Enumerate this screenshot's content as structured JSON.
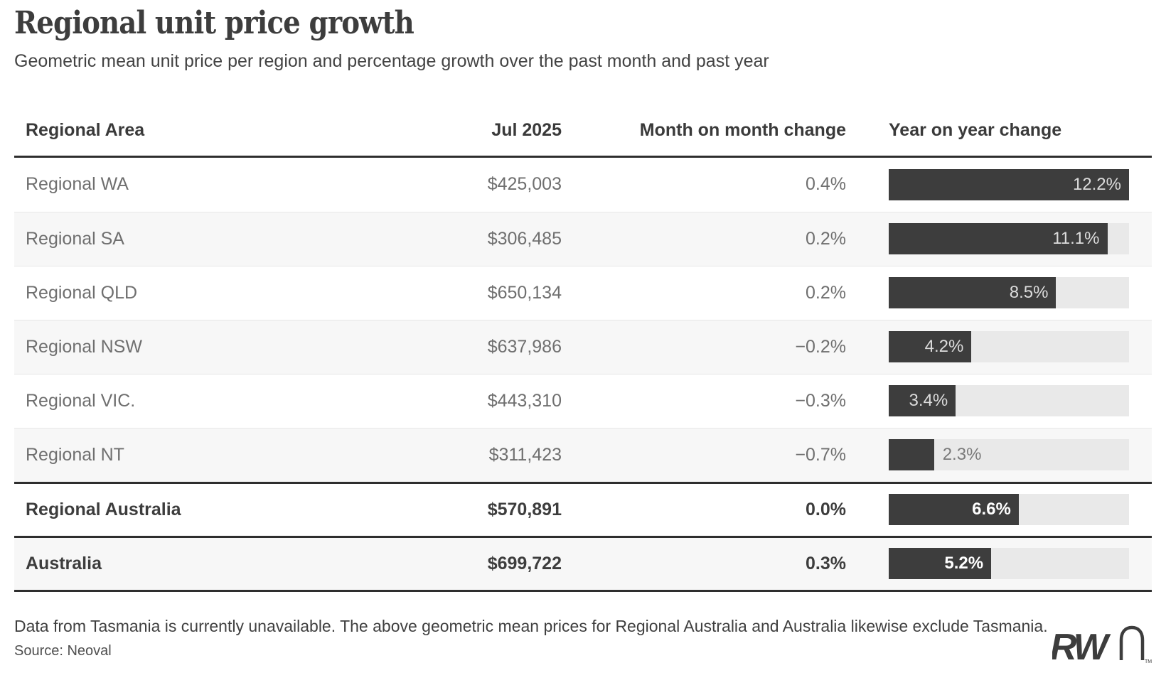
{
  "header": {
    "title": "Regional unit price growth",
    "subtitle": "Geometric mean unit price per region and percentage growth over the past month and past year"
  },
  "table": {
    "columns": {
      "area": "Regional Area",
      "price": "Jul 2025",
      "mom": "Month on month change",
      "yoy": "Year on year change"
    },
    "bar_axis_max": 12.2,
    "rows": [
      {
        "area": "Regional WA",
        "price": "$425,003",
        "mom": "0.4%",
        "yoy": 12.2,
        "yoy_label": "12.2%",
        "bold": false,
        "shaded": false,
        "rule_above": false
      },
      {
        "area": "Regional SA",
        "price": "$306,485",
        "mom": "0.2%",
        "yoy": 11.1,
        "yoy_label": "11.1%",
        "bold": false,
        "shaded": true,
        "rule_above": false
      },
      {
        "area": "Regional QLD",
        "price": "$650,134",
        "mom": "0.2%",
        "yoy": 8.5,
        "yoy_label": "8.5%",
        "bold": false,
        "shaded": false,
        "rule_above": false
      },
      {
        "area": "Regional NSW",
        "price": "$637,986",
        "mom": "−0.2%",
        "yoy": 4.2,
        "yoy_label": "4.2%",
        "bold": false,
        "shaded": true,
        "rule_above": false
      },
      {
        "area": "Regional VIC.",
        "price": "$443,310",
        "mom": "−0.3%",
        "yoy": 3.4,
        "yoy_label": "3.4%",
        "bold": false,
        "shaded": false,
        "rule_above": false
      },
      {
        "area": "Regional NT",
        "price": "$311,423",
        "mom": "−0.7%",
        "yoy": 2.3,
        "yoy_label": "2.3%",
        "bold": false,
        "shaded": true,
        "rule_above": false
      },
      {
        "area": "Regional Australia",
        "price": "$570,891",
        "mom": "0.0%",
        "yoy": 6.6,
        "yoy_label": "6.6%",
        "bold": true,
        "shaded": false,
        "rule_above": true
      },
      {
        "area": "Australia",
        "price": "$699,722",
        "mom": "0.3%",
        "yoy": 5.2,
        "yoy_label": "5.2%",
        "bold": true,
        "shaded": true,
        "rule_above": true
      }
    ]
  },
  "footer": {
    "note": "Data from Tasmania is currently unavailable. The above geometric mean prices for Regional Australia and Australia likewise exclude Tasmania.",
    "source": "Source: Neoval",
    "logo_rw": "RW",
    "logo_n": "n",
    "logo_tm": "TM"
  },
  "colors": {
    "bar_fill": "#3d3d3d",
    "bar_track": "#e9e9e9",
    "shaded_row": "#f7f7f7",
    "rule": "#2e2e2e",
    "body_text": "#6f6f6f",
    "heading_text": "#3d3d3d",
    "bar_label_light": "#dcdcdc",
    "bar_label_outside": "#7a7a7a"
  },
  "chart_data": {
    "type": "bar",
    "title": "Regional unit price growth",
    "subtitle": "Geometric mean unit price per region and percentage growth over the past month and past year",
    "categories": [
      "Regional WA",
      "Regional SA",
      "Regional QLD",
      "Regional NSW",
      "Regional VIC.",
      "Regional NT",
      "Regional Australia",
      "Australia"
    ],
    "series": [
      {
        "name": "Jul 2025",
        "values": [
          425003,
          306485,
          650134,
          637986,
          443310,
          311423,
          570891,
          699722
        ]
      },
      {
        "name": "Month on month change",
        "values": [
          0.4,
          0.2,
          0.2,
          -0.2,
          -0.3,
          -0.7,
          0.0,
          0.3
        ]
      },
      {
        "name": "Year on year change",
        "values": [
          12.2,
          11.1,
          8.5,
          4.2,
          3.4,
          2.3,
          6.6,
          5.2
        ]
      }
    ],
    "bar_series_shown_as_bars": "Year on year change",
    "xlabel": "",
    "ylabel": "",
    "xlim": [
      0,
      12.2
    ],
    "orientation": "horizontal",
    "grid": false,
    "legend_position": "none",
    "annotations": [
      "Data from Tasmania is currently unavailable. The above geometric mean prices for Regional Australia and Australia likewise exclude Tasmania.",
      "Source: Neoval"
    ]
  }
}
